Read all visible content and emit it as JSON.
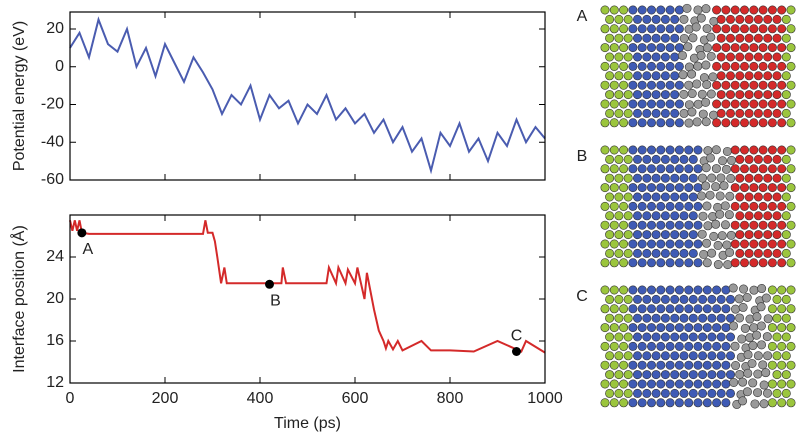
{
  "chart_data": [
    {
      "type": "line",
      "ylabel": "Potential energy (eV)",
      "xlim": [
        0,
        1000
      ],
      "ylim": [
        -60,
        29
      ],
      "yticks": [
        -60,
        -40,
        -20,
        0,
        20
      ],
      "x": [
        0,
        20,
        40,
        60,
        80,
        100,
        120,
        140,
        160,
        180,
        200,
        220,
        240,
        260,
        280,
        300,
        320,
        340,
        360,
        380,
        400,
        420,
        440,
        460,
        480,
        500,
        520,
        540,
        560,
        580,
        600,
        620,
        640,
        660,
        680,
        700,
        720,
        740,
        760,
        780,
        800,
        820,
        840,
        860,
        880,
        900,
        920,
        940,
        960,
        980,
        1000
      ],
      "series": [
        {
          "color": "#4a5cb0",
          "values": [
            10,
            18,
            5,
            25,
            12,
            8,
            20,
            0,
            10,
            -5,
            12,
            2,
            -8,
            5,
            -3,
            -12,
            -25,
            -15,
            -20,
            -10,
            -28,
            -15,
            -22,
            -18,
            -30,
            -20,
            -25,
            -15,
            -28,
            -22,
            -30,
            -25,
            -35,
            -28,
            -40,
            -32,
            -45,
            -38,
            -55,
            -35,
            -42,
            -30,
            -45,
            -38,
            -50,
            -35,
            -42,
            -28,
            -40,
            -32,
            -38
          ]
        }
      ]
    },
    {
      "type": "line",
      "xlabel": "Time (ps)",
      "ylabel": "Interface position (Å)",
      "xlim": [
        0,
        1000
      ],
      "ylim": [
        12,
        28
      ],
      "yticks": [
        12,
        16,
        20,
        24
      ],
      "xticks": [
        0,
        200,
        400,
        600,
        800,
        1000
      ],
      "x": [
        0,
        5,
        10,
        15,
        20,
        25,
        40,
        280,
        285,
        290,
        300,
        305,
        310,
        318,
        325,
        330,
        340,
        400,
        445,
        448,
        455,
        460,
        540,
        545,
        560,
        565,
        580,
        585,
        600,
        605,
        620,
        625,
        640,
        650,
        660,
        665,
        670,
        680,
        690,
        700,
        740,
        760,
        800,
        850,
        900,
        950,
        960,
        1000
      ],
      "series": [
        {
          "color": "#d42a2a",
          "values": [
            27.5,
            26.5,
            27.5,
            26.5,
            27.5,
            26.3,
            26.2,
            26.2,
            27.5,
            26.3,
            26.3,
            25.5,
            24,
            21.5,
            23,
            21.5,
            21.5,
            21.5,
            21.5,
            23,
            21.5,
            21.5,
            21.5,
            23,
            21.5,
            23,
            21.5,
            22.8,
            21.5,
            23,
            20,
            22.5,
            19,
            17,
            16,
            15.3,
            16,
            15.2,
            16,
            15.1,
            16,
            15.1,
            15.1,
            15,
            16,
            15,
            16,
            14.9
          ]
        }
      ],
      "markers": {
        "x": [
          25,
          420,
          940
        ],
        "values": [
          26.3,
          21.4,
          15.0
        ],
        "labels": [
          "A",
          "B",
          "C"
        ]
      }
    }
  ],
  "snapshot_labels": [
    "A",
    "B",
    "C"
  ]
}
